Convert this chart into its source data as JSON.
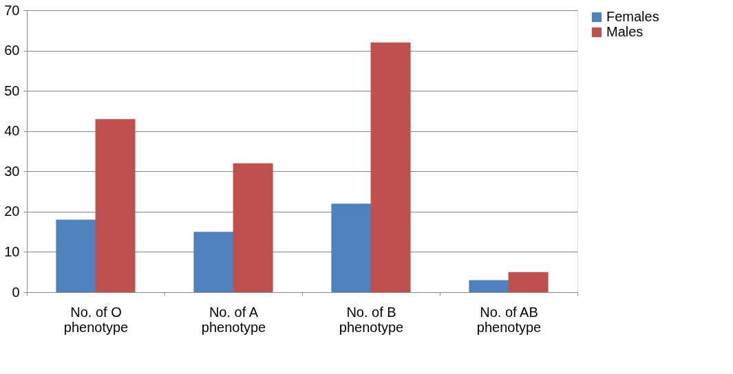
{
  "chart_data": {
    "type": "bar",
    "categories": [
      "No. of O phenotype",
      "No. of A phenotype",
      "No. of B phenotype",
      "No. of AB phenotype"
    ],
    "series": [
      {
        "name": "Females",
        "color": "#4f81bd",
        "values": [
          18,
          15,
          22,
          3
        ]
      },
      {
        "name": "Males",
        "color": "#c0504d",
        "values": [
          43,
          32,
          62,
          5
        ]
      }
    ],
    "ylim": [
      0,
      70
    ],
    "yticks": [
      0,
      10,
      20,
      30,
      40,
      50,
      60,
      70
    ],
    "grid": "y",
    "legend": "right"
  }
}
